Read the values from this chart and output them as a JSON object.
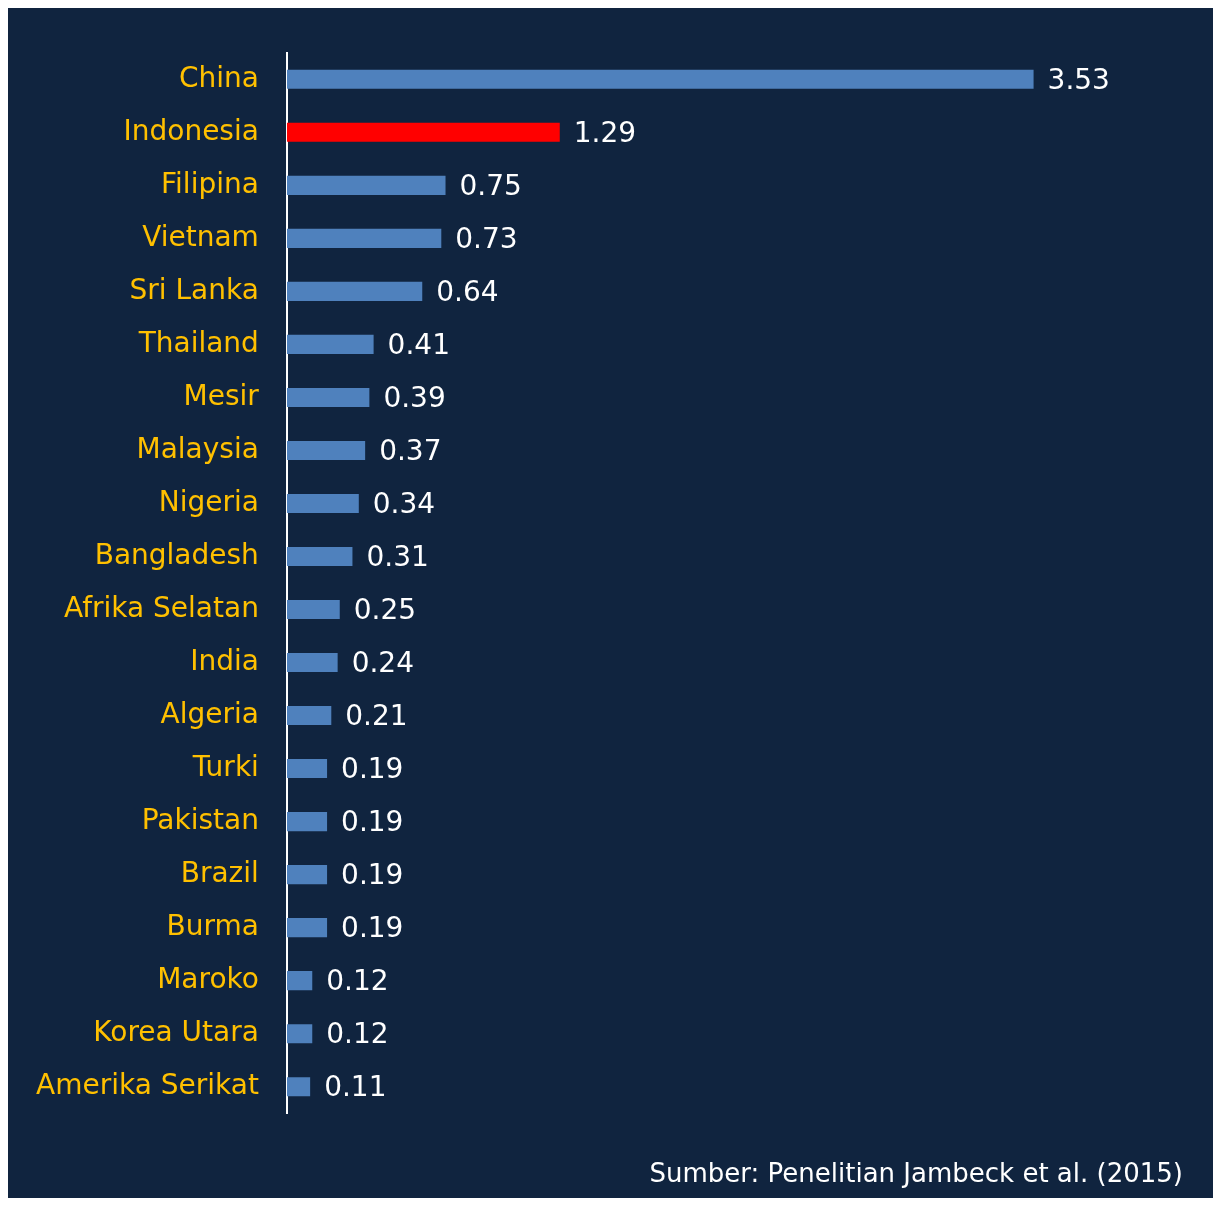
{
  "chart_data": {
    "type": "bar",
    "orientation": "horizontal",
    "categories": [
      "China",
      "Indonesia",
      "Filipina",
      "Vietnam",
      "Sri Lanka",
      "Thailand",
      "Mesir",
      "Malaysia",
      "Nigeria",
      "Bangladesh",
      "Afrika Selatan",
      "India",
      "Algeria",
      "Turki",
      "Pakistan",
      "Brazil",
      "Burma",
      "Maroko",
      "Korea Utara",
      "Amerika Serikat"
    ],
    "values": [
      3.53,
      1.29,
      0.75,
      0.73,
      0.64,
      0.41,
      0.39,
      0.37,
      0.34,
      0.31,
      0.25,
      0.24,
      0.21,
      0.19,
      0.19,
      0.19,
      0.19,
      0.12,
      0.12,
      0.11
    ],
    "colors": [
      "#4f81bd",
      "#ff0000",
      "#4f81bd",
      "#4f81bd",
      "#4f81bd",
      "#4f81bd",
      "#4f81bd",
      "#4f81bd",
      "#4f81bd",
      "#4f81bd",
      "#4f81bd",
      "#4f81bd",
      "#4f81bd",
      "#4f81bd",
      "#4f81bd",
      "#4f81bd",
      "#4f81bd",
      "#4f81bd",
      "#4f81bd",
      "#4f81bd"
    ],
    "data_labels": true,
    "legend": false,
    "tick_labels": "y",
    "annotations": [
      "Sumber: Penelitian Jambeck et al. (2015)"
    ]
  }
}
